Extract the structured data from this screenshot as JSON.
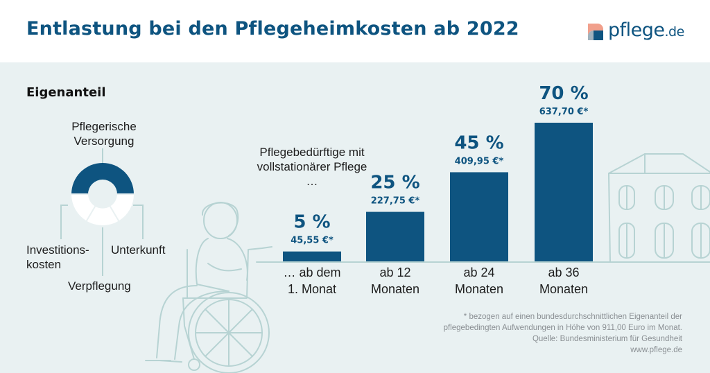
{
  "header": {
    "title": "Entlastung bei den Pflegeheimkosten ab 2022",
    "logo_text": "pflege",
    "logo_tld": ".de"
  },
  "colors": {
    "primary": "#0e5480",
    "panel_background": "#e9f1f2",
    "illustration": "#b7d3d3",
    "logo_coral": "#f1a08c",
    "logo_gray": "#9fb2bd"
  },
  "eigenanteil": {
    "heading": "Eigenanteil",
    "segments": [
      {
        "label": "Pflegerische Versorgung",
        "line1": "Pflegerische",
        "line2": "Versorgung",
        "highlighted": true
      },
      {
        "label": "Unterkunft",
        "highlighted": false
      },
      {
        "label": "Verpflegung",
        "highlighted": false
      },
      {
        "label": "Investitionskosten",
        "line1": "Investitions-",
        "line2": "kosten",
        "highlighted": false
      }
    ]
  },
  "intro_text": "Pflegebedürftige mit vollstationärer Pflege …",
  "chart_data": {
    "type": "bar",
    "title": "Entlastung bei den Pflegeheimkosten ab 2022",
    "unit": "%",
    "categories": [
      "… ab dem 1. Monat",
      "ab 12 Monaten",
      "ab 24 Monaten",
      "ab 36 Monaten"
    ],
    "category_lines": [
      [
        "… ab dem",
        "1. Monat"
      ],
      [
        "ab 12",
        "Monaten"
      ],
      [
        "ab 24",
        "Monaten"
      ],
      [
        "ab 36",
        "Monaten"
      ]
    ],
    "values": [
      5,
      25,
      45,
      70
    ],
    "value_labels": [
      "5 %",
      "25 %",
      "45 %",
      "70 %"
    ],
    "euro_labels": [
      "45,55 €*",
      "227,75 €*",
      "409,95 €*",
      "637,70 €*"
    ],
    "euro_values": [
      45.55,
      227.75,
      409.95,
      637.7
    ],
    "ylim": [
      0,
      70
    ],
    "xlabel": "",
    "ylabel": ""
  },
  "footnote": {
    "lines": [
      "* bezogen auf einen bundesdurchschnittlichen Eigenanteil der",
      "pflegebedingten Aufwendungen in Höhe von 911,00 Euro im Monat.",
      "Quelle: Bundesministerium für Gesundheit",
      "www.pflege.de"
    ]
  }
}
